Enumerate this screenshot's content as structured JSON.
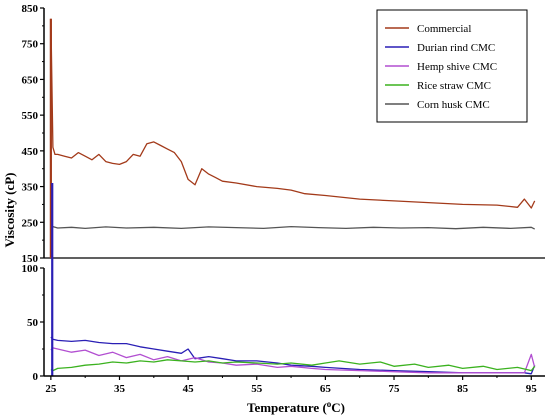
{
  "chart_data": {
    "type": "line",
    "title": "",
    "xlabel": "Temperature (",
    "xlabel_sup": "o",
    "xlabel_unit": "C)",
    "ylabel": "Viscosity (cP)",
    "xlim": [
      24,
      97
    ],
    "x_ticks": [
      "25",
      "35",
      "45",
      "55",
      "65",
      "75",
      "85",
      "95"
    ],
    "broken_y_axis": true,
    "upper_ylim": [
      150,
      850
    ],
    "upper_y_ticks": [
      "150",
      "250",
      "350",
      "450",
      "550",
      "650",
      "750",
      "850"
    ],
    "lower_ylim": [
      0,
      100
    ],
    "lower_y_ticks": [
      "0",
      "50",
      "100"
    ],
    "grid": false,
    "legend_position": "top-right",
    "series": [
      {
        "name": "Commercial",
        "color": "#a33a1a",
        "x": [
          25,
          25.3,
          25.6,
          26,
          27,
          28,
          29,
          30,
          31,
          32,
          33,
          34,
          35,
          36,
          37,
          38,
          39,
          40,
          41,
          42,
          43,
          44,
          45,
          46,
          47,
          48,
          49,
          50,
          52,
          55,
          58,
          60,
          62,
          65,
          70,
          75,
          80,
          85,
          90,
          93,
          94,
          95,
          95.5
        ],
        "y": [
          820,
          460,
          440,
          440,
          435,
          430,
          445,
          435,
          425,
          440,
          420,
          415,
          412,
          420,
          440,
          435,
          470,
          475,
          465,
          455,
          445,
          420,
          370,
          355,
          400,
          385,
          375,
          365,
          360,
          350,
          345,
          340,
          330,
          325,
          315,
          310,
          305,
          300,
          298,
          292,
          315,
          290,
          310
        ]
      },
      {
        "name": "Durian rind CMC",
        "color": "#2a1fb5",
        "x": [
          25,
          25.3,
          26,
          28,
          30,
          32,
          34,
          36,
          38,
          40,
          42,
          44,
          45,
          46,
          48,
          50,
          52,
          55,
          58,
          60,
          63,
          65,
          70,
          75,
          80,
          85,
          90,
          94,
          95,
          95.5
        ],
        "y": [
          36,
          34,
          33,
          32,
          33,
          31,
          30,
          30,
          27,
          25,
          23,
          21,
          25,
          16,
          18,
          16,
          14,
          14,
          12,
          10,
          9,
          8,
          6,
          5,
          4,
          3,
          3,
          3,
          2,
          10
        ]
      },
      {
        "name": "Hemp shive CMC",
        "color": "#b24fd1",
        "x": [
          25,
          25.3,
          26,
          28,
          30,
          32,
          34,
          36,
          38,
          40,
          42,
          44,
          46,
          48,
          50,
          52,
          55,
          58,
          60,
          63,
          65,
          70,
          75,
          80,
          85,
          90,
          94,
          95,
          95.5
        ],
        "y": [
          24,
          26,
          25,
          22,
          24,
          19,
          22,
          17,
          20,
          15,
          18,
          14,
          17,
          13,
          12,
          10,
          11,
          8,
          9,
          7,
          6,
          5,
          4,
          3,
          3,
          3,
          3,
          20,
          8
        ]
      },
      {
        "name": "Rice straw CMC",
        "color": "#3bb21f",
        "x": [
          25,
          25.3,
          26,
          28,
          30,
          32,
          34,
          36,
          38,
          40,
          42,
          44,
          46,
          48,
          50,
          52,
          55,
          58,
          60,
          63,
          65,
          67,
          70,
          73,
          75,
          78,
          80,
          83,
          85,
          88,
          90,
          93,
          95,
          95.5
        ],
        "y": [
          6,
          5,
          7,
          8,
          10,
          11,
          13,
          12,
          14,
          13,
          15,
          14,
          13,
          14,
          12,
          13,
          12,
          11,
          12,
          10,
          12,
          14,
          11,
          13,
          9,
          11,
          8,
          10,
          7,
          9,
          6,
          8,
          5,
          9
        ]
      },
      {
        "name": "Corn husk CMC",
        "color": "#555555",
        "x": [
          25,
          25.3,
          26,
          28,
          30,
          33,
          36,
          40,
          44,
          48,
          52,
          56,
          60,
          64,
          68,
          72,
          76,
          80,
          84,
          88,
          92,
          95,
          95.5
        ],
        "y": [
          228,
          238,
          234,
          236,
          233,
          237,
          234,
          236,
          233,
          237,
          235,
          233,
          238,
          235,
          233,
          236,
          234,
          235,
          232,
          236,
          233,
          236,
          231
        ]
      }
    ]
  }
}
